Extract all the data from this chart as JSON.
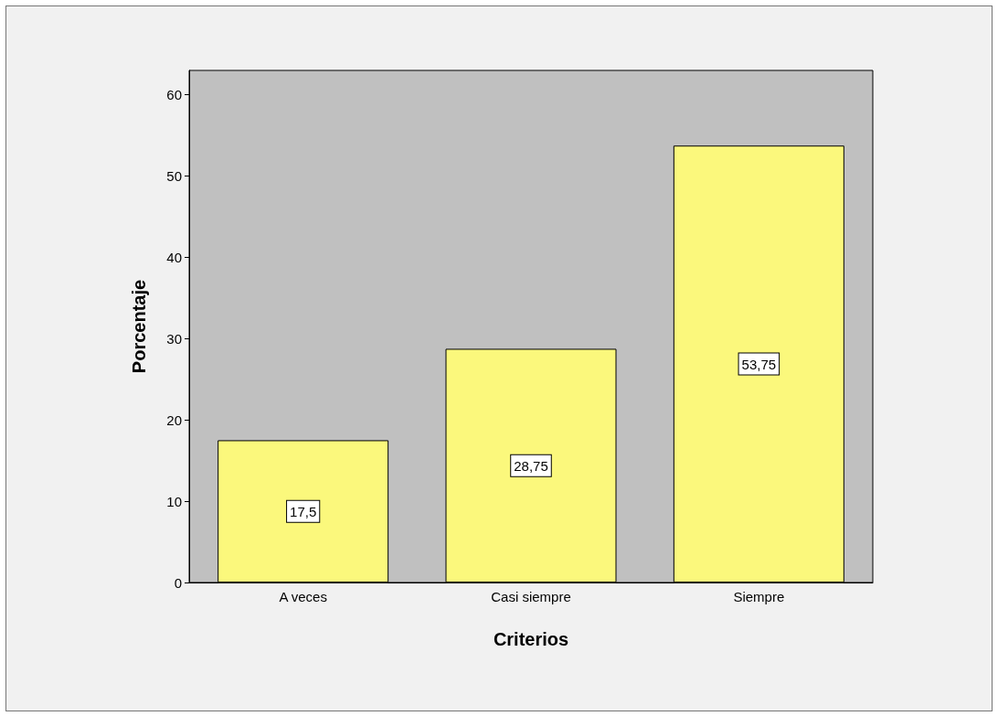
{
  "chart_data": {
    "type": "bar",
    "xlabel": "Criterios",
    "ylabel": "Porcentaje",
    "categories": [
      "A veces",
      "Casi siempre",
      "Siempre"
    ],
    "values": [
      17.5,
      28.75,
      53.75
    ],
    "value_labels": [
      "17,5",
      "28,75",
      "53,75"
    ],
    "color": "#fbf87c",
    "ylim": [
      0,
      63
    ],
    "yticks": [
      0,
      10,
      20,
      30,
      40,
      50,
      60
    ],
    "grid": false
  }
}
